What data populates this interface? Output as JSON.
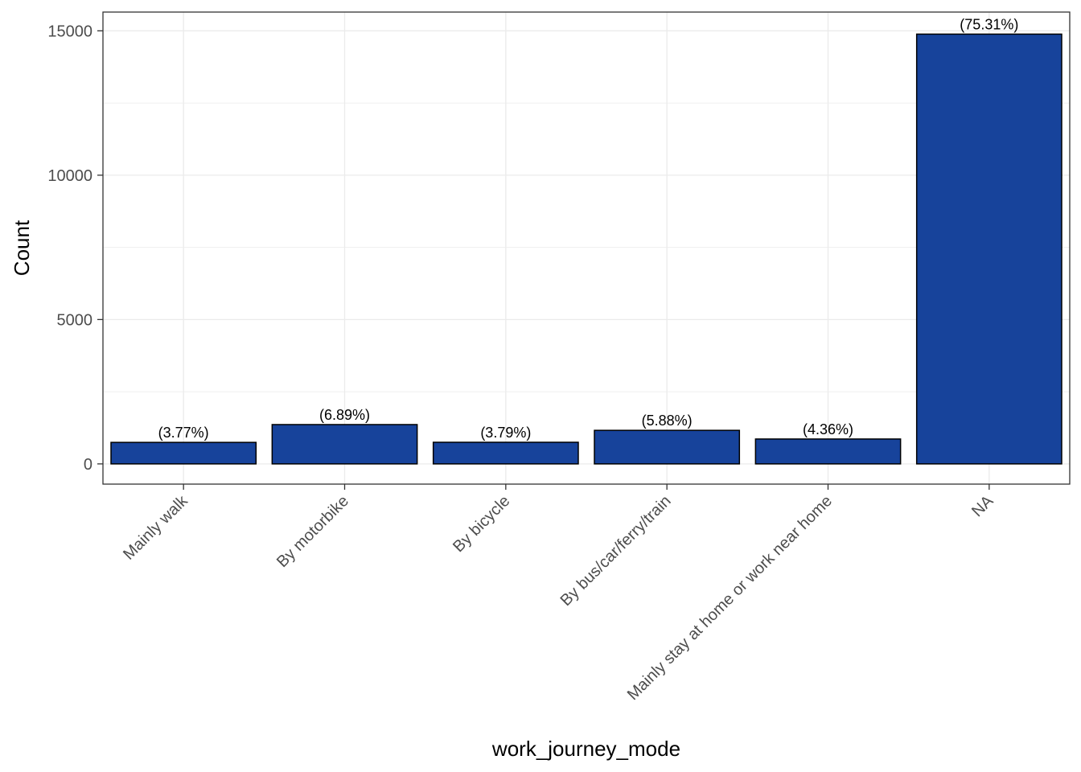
{
  "chart_data": {
    "type": "bar",
    "title": "",
    "xlabel": "work_journey_mode",
    "ylabel": "Count",
    "categories": [
      "Mainly walk",
      "By motorbike",
      "By bicycle",
      "By bus/car/ferry/train",
      "Mainly stay at home or work near home",
      "NA"
    ],
    "values": [
      745,
      1362,
      749,
      1162,
      862,
      14886
    ],
    "value_labels": [
      "(3.77%)",
      "(6.89%)",
      "(3.79%)",
      "(5.88%)",
      "(4.36%)",
      "(75.31%)"
    ],
    "ylim": [
      -700,
      15650
    ],
    "y_ticks": [
      0,
      5000,
      10000,
      15000
    ],
    "y_tick_labels": [
      "0",
      "5000",
      "10000",
      "15000"
    ],
    "y_minor_ticks": [
      2500,
      7500,
      12500
    ],
    "grid": true,
    "legend": "none",
    "colors": {
      "bar_fill": "#17439B",
      "bar_stroke": "#000000",
      "grid": "#EBEBEB",
      "panel_border": "#333333",
      "tick_text": "#4D4D4D"
    }
  }
}
